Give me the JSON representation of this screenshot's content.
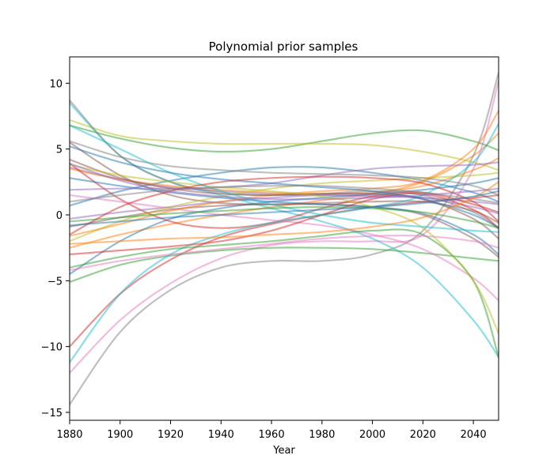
{
  "chart_data": {
    "type": "line",
    "title": "Polynomial prior samples",
    "xlabel": "Year",
    "ylabel": "",
    "xlim": [
      1880,
      2050
    ],
    "ylim": [
      -15.6,
      12.0
    ],
    "xticks": [
      1880,
      1900,
      1920,
      1940,
      1960,
      1980,
      2000,
      2020,
      2040
    ],
    "yticks": [
      -15,
      -10,
      -5,
      0,
      5,
      10
    ],
    "grid": false,
    "legend": "none",
    "x": [
      1880,
      1900,
      1920,
      1940,
      1960,
      1980,
      2000,
      2020,
      2040,
      2050
    ],
    "series": [
      {
        "color": "#1f77b4",
        "values": [
          0.7,
          1.8,
          2.6,
          3.2,
          3.6,
          3.6,
          3.2,
          2.6,
          1.7,
          1.0
        ]
      },
      {
        "color": "#ff7f0e",
        "values": [
          -2.5,
          -1.5,
          -0.7,
          0.0,
          0.6,
          1.1,
          1.6,
          2.5,
          4.5,
          6.2
        ]
      },
      {
        "color": "#2ca02c",
        "values": [
          6.8,
          5.8,
          5.1,
          4.8,
          5.0,
          5.6,
          6.2,
          6.4,
          5.6,
          4.9
        ]
      },
      {
        "color": "#d62728",
        "values": [
          -10.0,
          -6.0,
          -3.4,
          -1.7,
          -0.7,
          0.0,
          0.6,
          1.0,
          1.3,
          1.5
        ]
      },
      {
        "color": "#9467bd",
        "values": [
          3.6,
          2.7,
          2.1,
          1.8,
          1.6,
          1.5,
          1.4,
          1.3,
          1.0,
          0.8
        ]
      },
      {
        "color": "#8c564b",
        "values": [
          5.5,
          3.0,
          1.5,
          0.9,
          0.8,
          0.9,
          1.0,
          1.0,
          0.3,
          -0.6
        ]
      },
      {
        "color": "#e377c2",
        "values": [
          -12.0,
          -8.0,
          -5.2,
          -3.3,
          -2.3,
          -2.0,
          -2.0,
          -1.5,
          3.5,
          10.2
        ]
      },
      {
        "color": "#7f7f7f",
        "values": [
          -14.4,
          -8.9,
          -5.7,
          -4.0,
          -3.5,
          -3.5,
          -3.0,
          -1.2,
          4.5,
          10.8
        ]
      },
      {
        "color": "#bcbd22",
        "values": [
          7.2,
          6.0,
          5.6,
          5.4,
          5.4,
          5.4,
          5.3,
          4.8,
          4.0,
          3.4
        ]
      },
      {
        "color": "#17becf",
        "values": [
          8.5,
          4.5,
          2.5,
          1.5,
          0.5,
          -0.5,
          -1.8,
          -4.0,
          -8.0,
          -10.8
        ]
      },
      {
        "color": "#1f77b4",
        "values": [
          -4.5,
          -2.0,
          -0.3,
          0.5,
          1.0,
          1.3,
          1.6,
          1.9,
          2.4,
          2.8
        ]
      },
      {
        "color": "#ff7f0e",
        "values": [
          3.5,
          2.7,
          2.2,
          1.9,
          1.7,
          1.6,
          1.7,
          2.2,
          3.4,
          4.3
        ]
      },
      {
        "color": "#2ca02c",
        "values": [
          -5.1,
          -3.8,
          -3.1,
          -2.7,
          -2.5,
          -2.5,
          -2.6,
          -2.9,
          -3.3,
          -3.5
        ]
      },
      {
        "color": "#d62728",
        "values": [
          3.9,
          1.2,
          -0.5,
          -1.0,
          -0.6,
          0.5,
          1.4,
          1.7,
          0.8,
          0.2
        ]
      },
      {
        "color": "#9467bd",
        "values": [
          -0.3,
          0.2,
          0.6,
          1.0,
          1.3,
          1.5,
          1.5,
          1.3,
          0.6,
          0.1
        ]
      },
      {
        "color": "#8c564b",
        "values": [
          -0.9,
          -0.2,
          0.4,
          0.7,
          0.8,
          0.8,
          0.6,
          0.0,
          -1.8,
          -3.2
        ]
      },
      {
        "color": "#e377c2",
        "values": [
          1.5,
          1.0,
          0.5,
          0.0,
          -0.4,
          -0.8,
          -1.5,
          -2.6,
          -4.8,
          -6.5
        ]
      },
      {
        "color": "#7f7f7f",
        "values": [
          8.7,
          4.5,
          2.5,
          1.7,
          1.5,
          1.6,
          1.8,
          1.5,
          0.2,
          -1.0
        ]
      },
      {
        "color": "#bcbd22",
        "values": [
          -2.0,
          -0.5,
          0.6,
          1.4,
          2.0,
          2.4,
          2.6,
          2.8,
          3.0,
          3.2
        ]
      },
      {
        "color": "#17becf",
        "values": [
          -11.2,
          -6.0,
          -3.0,
          -1.5,
          -0.6,
          0.0,
          0.6,
          1.5,
          4.0,
          6.9
        ]
      },
      {
        "color": "#1f77b4",
        "values": [
          2.8,
          2.2,
          1.7,
          1.3,
          1.0,
          0.8,
          0.6,
          0.1,
          -1.5,
          -3.0
        ]
      },
      {
        "color": "#ff7f0e",
        "values": [
          -1.6,
          -0.7,
          0.3,
          1.0,
          1.5,
          1.8,
          2.0,
          2.6,
          5.0,
          7.9
        ]
      },
      {
        "color": "#2ca02c",
        "values": [
          -4.0,
          -3.2,
          -2.6,
          -2.3,
          -2.0,
          -1.6,
          -1.2,
          -1.5,
          -5.0,
          -10.8
        ]
      },
      {
        "color": "#d62728",
        "values": [
          -3.0,
          -2.7,
          -2.4,
          -2.0,
          -1.2,
          0.0,
          1.2,
          1.6,
          0.4,
          -1.0
        ]
      },
      {
        "color": "#9467bd",
        "values": [
          1.9,
          2.0,
          2.0,
          2.1,
          2.4,
          3.0,
          3.5,
          3.7,
          3.8,
          4.0
        ]
      },
      {
        "color": "#8c564b",
        "values": [
          4.2,
          2.8,
          2.0,
          1.6,
          1.5,
          1.6,
          1.6,
          1.2,
          -0.3,
          -1.8
        ]
      },
      {
        "color": "#e377c2",
        "values": [
          -4.2,
          -3.5,
          -3.0,
          -2.6,
          -2.2,
          -1.8,
          -1.6,
          -1.6,
          -2.0,
          -2.5
        ]
      },
      {
        "color": "#7f7f7f",
        "values": [
          5.6,
          4.4,
          3.7,
          3.4,
          3.2,
          3.1,
          3.0,
          2.8,
          2.2,
          1.5
        ]
      },
      {
        "color": "#bcbd22",
        "values": [
          3.8,
          3.0,
          2.5,
          2.1,
          1.8,
          1.4,
          0.6,
          -1.0,
          -5.0,
          -9.0
        ]
      },
      {
        "color": "#17becf",
        "values": [
          6.8,
          5.0,
          3.2,
          1.8,
          0.8,
          0.0,
          -0.6,
          -0.9,
          -1.2,
          -1.3
        ]
      },
      {
        "color": "#1f77b4",
        "values": [
          5.2,
          4.0,
          3.2,
          2.7,
          2.4,
          2.1,
          1.8,
          1.2,
          0.0,
          -1.0
        ]
      },
      {
        "color": "#2ca02c",
        "values": [
          -0.5,
          -0.2,
          0.1,
          0.3,
          0.5,
          0.6,
          0.5,
          0.2,
          -0.5,
          -1.0
        ]
      },
      {
        "color": "#d62728",
        "values": [
          -1.5,
          0.6,
          1.8,
          2.5,
          2.8,
          2.9,
          2.8,
          2.4,
          1.0,
          -0.5
        ]
      },
      {
        "color": "#9467bd",
        "values": [
          3.9,
          2.6,
          1.8,
          1.4,
          1.2,
          1.2,
          1.3,
          1.5,
          1.8,
          2.0
        ]
      },
      {
        "color": "#7f7f7f",
        "values": [
          1.0,
          1.5,
          1.9,
          2.1,
          2.2,
          2.2,
          2.0,
          1.7,
          1.2,
          0.9
        ]
      },
      {
        "color": "#ff7f0e",
        "values": [
          -2.2,
          -2.0,
          -1.8,
          -1.7,
          -1.5,
          -1.3,
          -0.9,
          -0.2,
          1.3,
          2.5
        ]
      },
      {
        "color": "#1f77b4",
        "values": [
          -0.8,
          -0.5,
          -0.2,
          0.0,
          0.2,
          0.4,
          0.6,
          0.9,
          1.4,
          1.8
        ]
      }
    ]
  }
}
